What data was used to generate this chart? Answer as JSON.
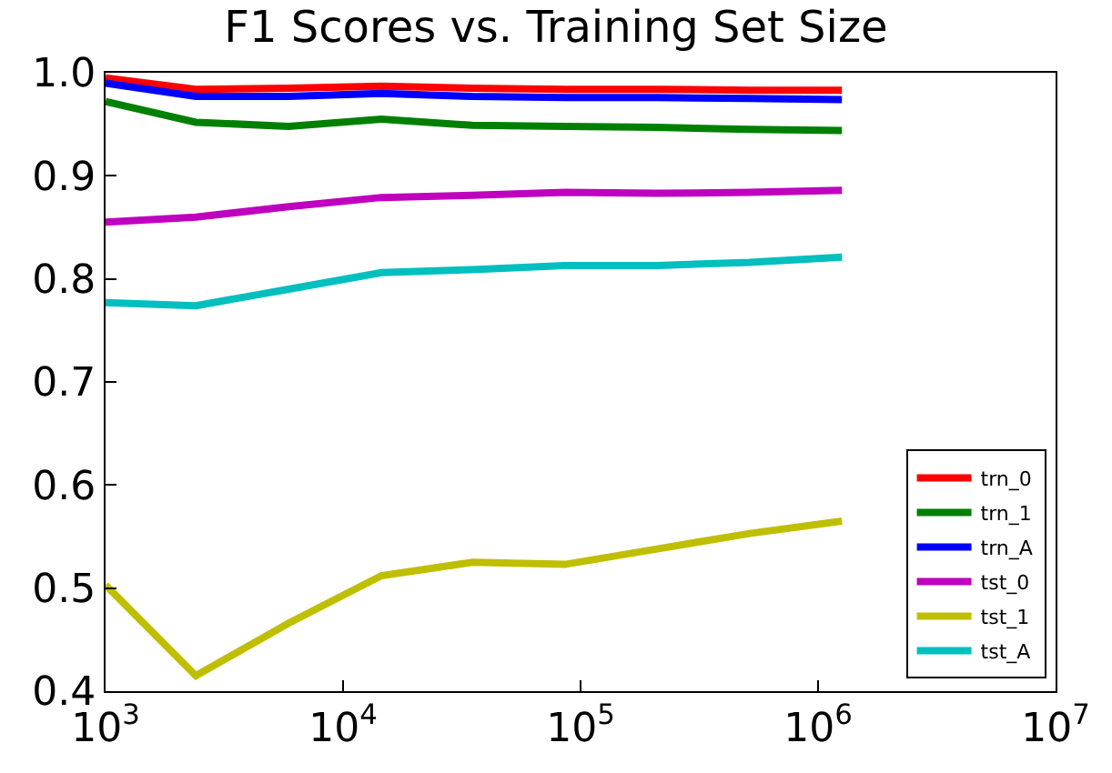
{
  "chart_data": {
    "type": "line",
    "title": "F1 Scores vs. Training Set Size",
    "x": [
      1000,
      2400,
      5900,
      14500,
      35000,
      86000,
      210000,
      515000,
      1260000
    ],
    "series": [
      {
        "name": "trn_0",
        "color": "#ff0000",
        "values": [
          0.995,
          0.984,
          0.985,
          0.987,
          0.985,
          0.984,
          0.984,
          0.983,
          0.983
        ]
      },
      {
        "name": "trn_1",
        "color": "#008000",
        "values": [
          0.972,
          0.952,
          0.948,
          0.955,
          0.949,
          0.948,
          0.947,
          0.945,
          0.944
        ]
      },
      {
        "name": "trn_A",
        "color": "#0000ff",
        "values": [
          0.99,
          0.977,
          0.977,
          0.98,
          0.977,
          0.976,
          0.976,
          0.975,
          0.974
        ]
      },
      {
        "name": "tst_0",
        "color": "#bf00bf",
        "values": [
          0.855,
          0.86,
          0.87,
          0.879,
          0.881,
          0.884,
          0.883,
          0.884,
          0.886
        ]
      },
      {
        "name": "tst_1",
        "color": "#bfbf00",
        "values": [
          0.503,
          0.415,
          0.466,
          0.512,
          0.525,
          0.523,
          0.538,
          0.553,
          0.565
        ]
      },
      {
        "name": "tst_A",
        "color": "#00bfbf",
        "values": [
          0.777,
          0.774,
          0.79,
          0.806,
          0.809,
          0.813,
          0.813,
          0.816,
          0.821
        ]
      }
    ],
    "log": "x",
    "xlim": [
      1000,
      10000000
    ],
    "xticks": [
      {
        "value": 1000,
        "label": "10$^{3}$"
      },
      {
        "value": 10000,
        "label": "10$^{4}$"
      },
      {
        "value": 100000,
        "label": "10$^{5}$"
      },
      {
        "value": 1000000,
        "label": "10$^{6}$"
      },
      {
        "value": 10000000,
        "label": "10$^{7}$"
      }
    ],
    "ylim": [
      0.4,
      1.0
    ],
    "yticks": [
      {
        "value": 0.4,
        "label": "0.4"
      },
      {
        "value": 0.5,
        "label": "0.5"
      },
      {
        "value": 0.6,
        "label": "0.6"
      },
      {
        "value": 0.7,
        "label": "0.7"
      },
      {
        "value": 0.8,
        "label": "0.8"
      },
      {
        "value": 0.9,
        "label": "0.9"
      },
      {
        "value": 1.0,
        "label": "1.0"
      }
    ],
    "grid": false,
    "legend": "bottom right",
    "marker": "none",
    "line_style": "solid"
  }
}
